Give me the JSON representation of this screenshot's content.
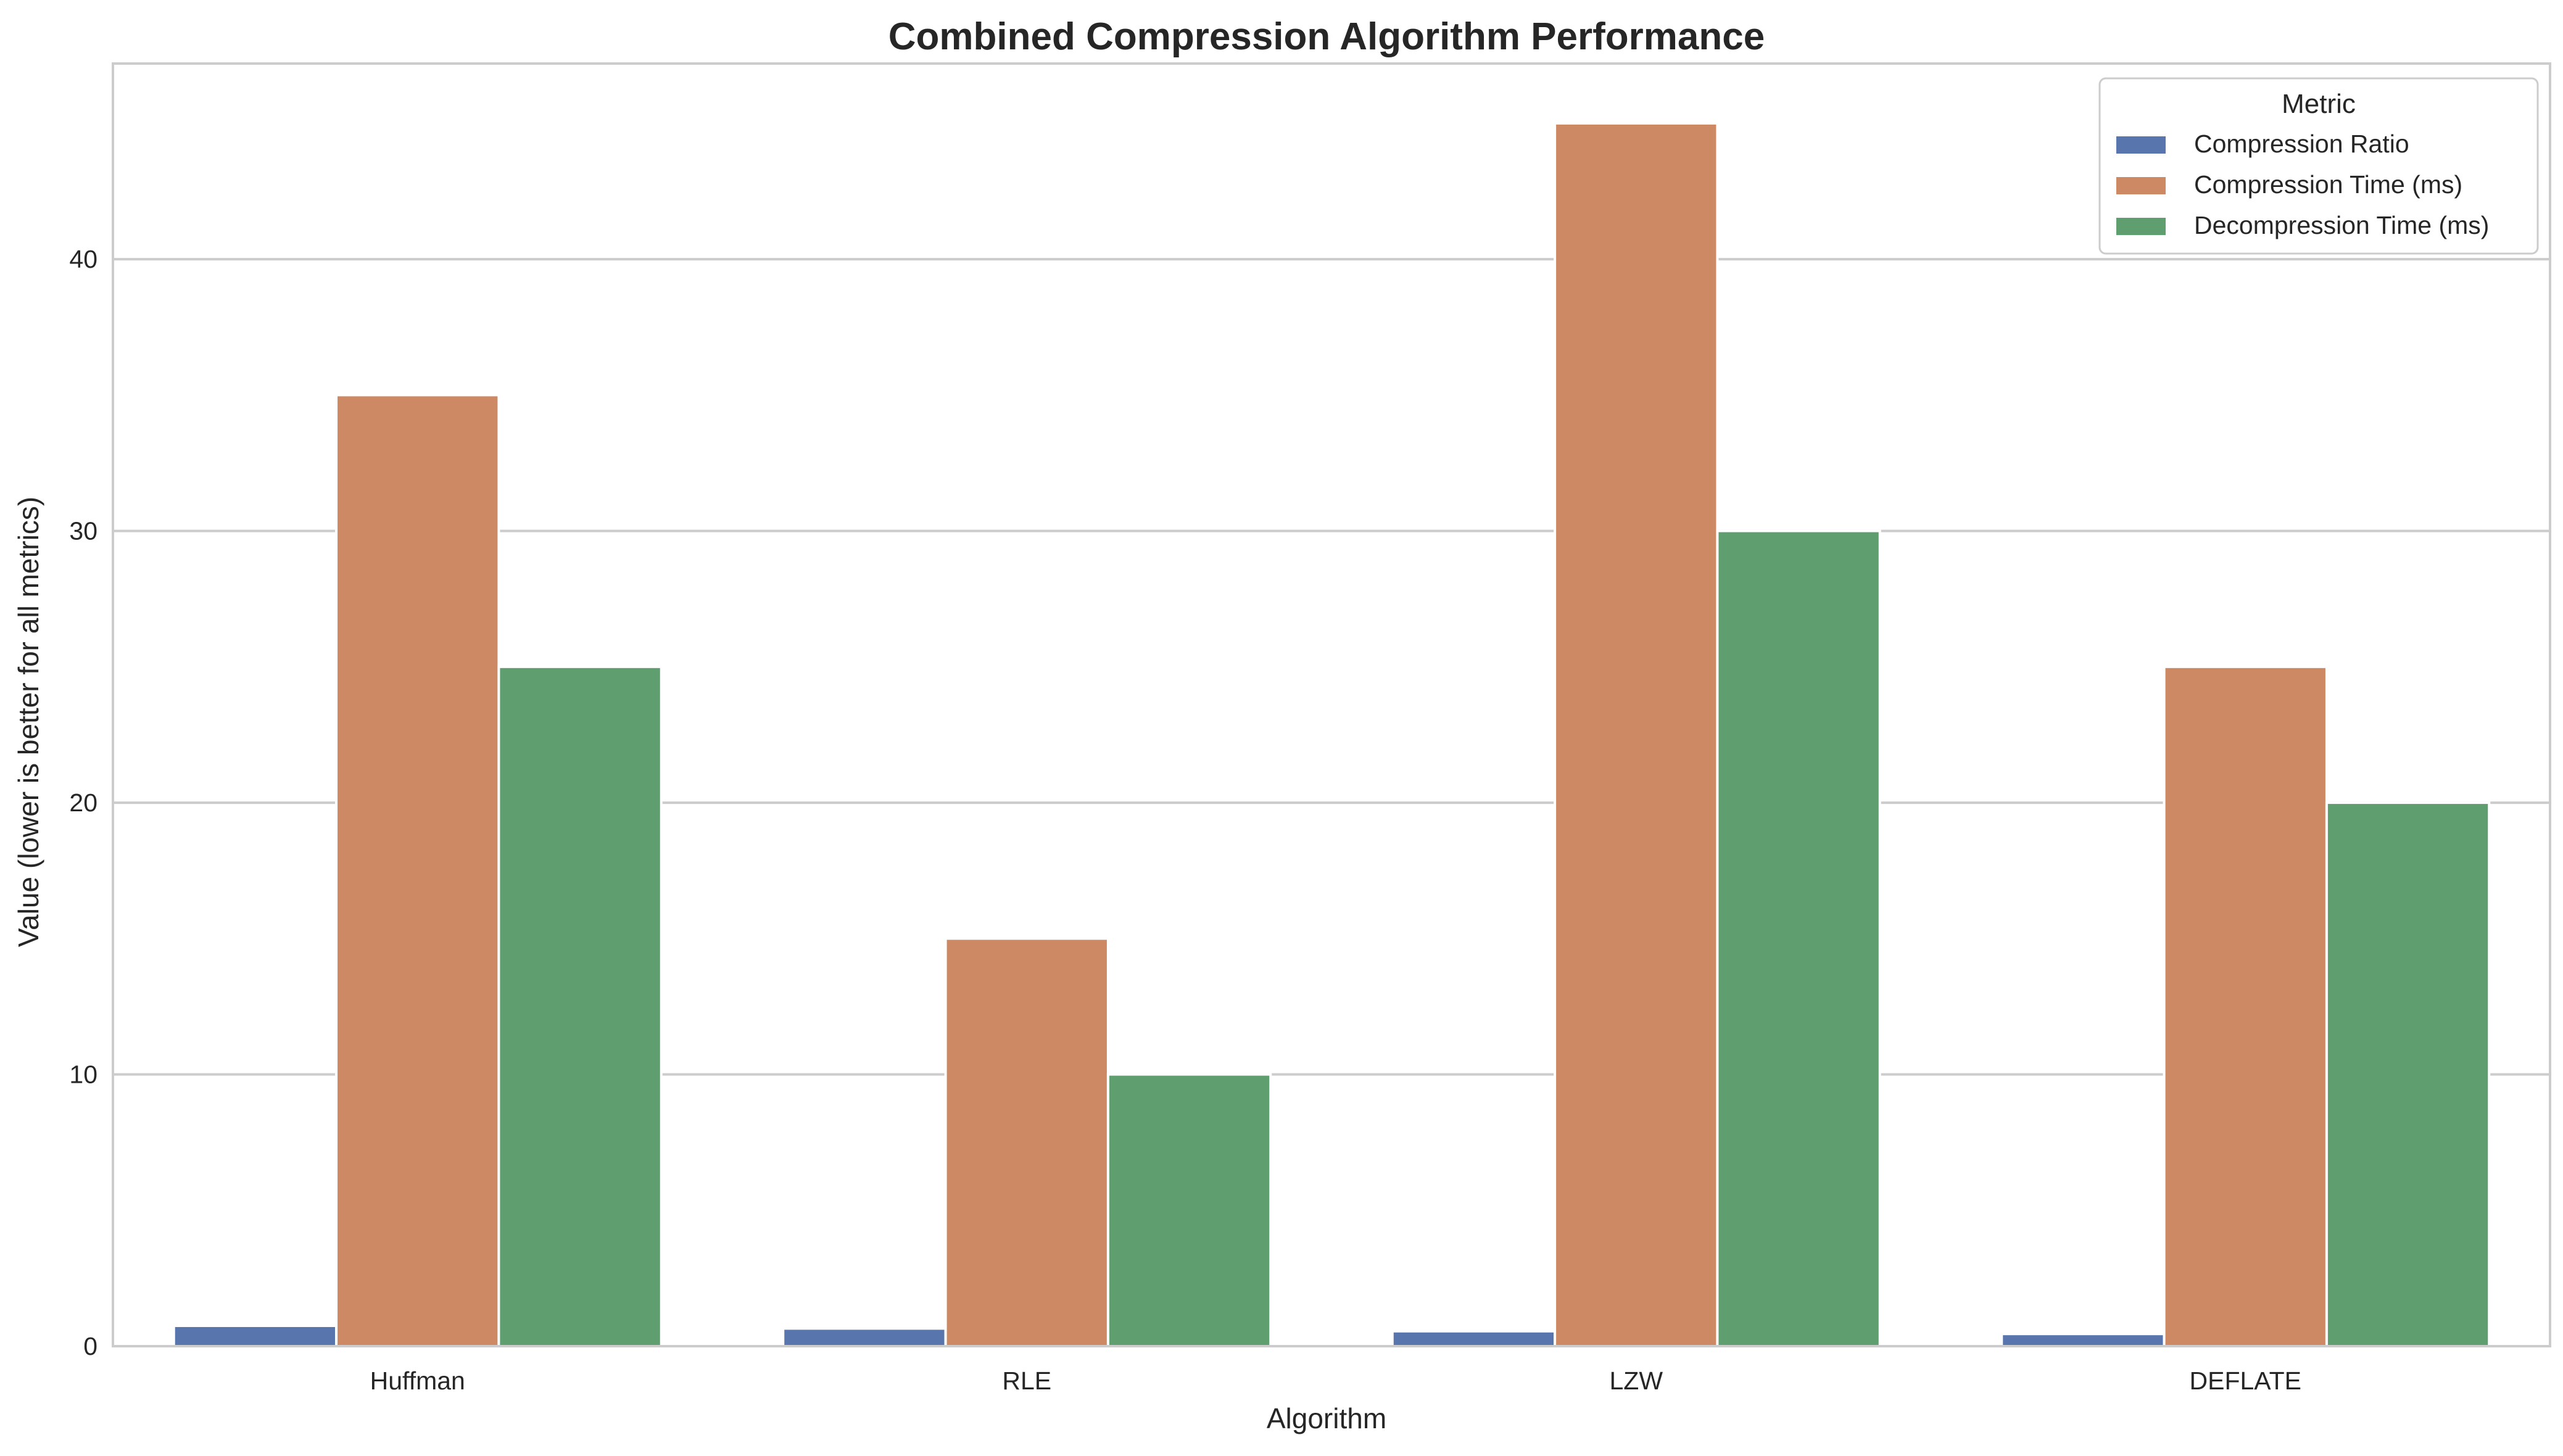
{
  "chart_data": {
    "type": "bar",
    "title": "Combined Compression Algorithm Performance",
    "xlabel": "Algorithm",
    "ylabel": "Value (lower is better for all metrics)",
    "categories": [
      "Huffman",
      "RLE",
      "LZW",
      "DEFLATE"
    ],
    "series": [
      {
        "name": "Compression Ratio",
        "color": "#5875ad",
        "values": [
          0.75,
          0.65,
          0.55,
          0.45
        ]
      },
      {
        "name": "Compression Time (ms)",
        "color": "#cc8963",
        "values": [
          35,
          15,
          45,
          25
        ]
      },
      {
        "name": "Decompression Time (ms)",
        "color": "#5f9e6e",
        "values": [
          25,
          10,
          30,
          20
        ]
      }
    ],
    "ylim": [
      0,
      47.2
    ],
    "yticks": [
      0,
      10,
      20,
      30,
      40
    ],
    "grid": true,
    "legend": {
      "title": "Metric",
      "placement": "top-right"
    }
  }
}
